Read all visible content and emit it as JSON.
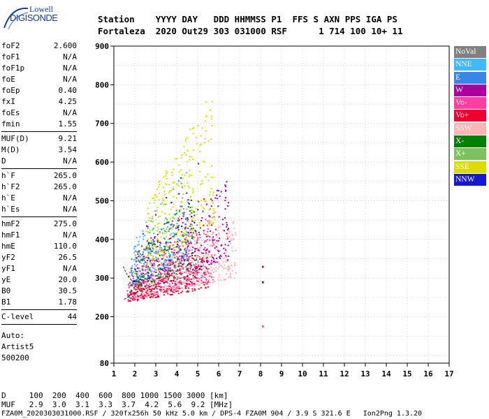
{
  "logo": {
    "line1": "Lowell",
    "line2": "DIGISONDE"
  },
  "header": {
    "line1": "Station    YYYY DAY   DDD HHMMSS P1  FFS S AXN PPS IGA PS",
    "line2": "Fortaleza  2020 Out29 303 031000 RSF      1 714 100 10+ 11"
  },
  "params": [
    [
      {
        "k": "foF2",
        "v": "2.600"
      },
      {
        "k": "foF1",
        "v": "N/A"
      },
      {
        "k": "foF1p",
        "v": "N/A"
      },
      {
        "k": "foE",
        "v": "N/A"
      },
      {
        "k": "foEp",
        "v": "0.40"
      },
      {
        "k": "fxI",
        "v": "4.25"
      },
      {
        "k": "foEs",
        "v": "N/A"
      },
      {
        "k": "fmin",
        "v": "1.55"
      }
    ],
    [
      {
        "k": "MUF(D)",
        "v": "9.21"
      },
      {
        "k": "M(D)",
        "v": "3.54"
      },
      {
        "k": "D",
        "v": "N/A"
      }
    ],
    [
      {
        "k": "h`F",
        "v": "265.0"
      },
      {
        "k": "h`F2",
        "v": "265.0"
      },
      {
        "k": "h`E",
        "v": "N/A"
      },
      {
        "k": "h`Es",
        "v": "N/A"
      }
    ],
    [
      {
        "k": "hmF2",
        "v": "275.0"
      },
      {
        "k": "hmF1",
        "v": "N/A"
      },
      {
        "k": "hmE",
        "v": "110.0"
      },
      {
        "k": "yF2",
        "v": "26.5"
      },
      {
        "k": "yF1",
        "v": "N/A"
      },
      {
        "k": "yE",
        "v": "20.0"
      },
      {
        "k": "B0",
        "v": "30.5"
      },
      {
        "k": "B1",
        "v": "1.78"
      }
    ],
    [
      {
        "k": "C-level",
        "v": "44"
      }
    ]
  ],
  "auto": {
    "line1": "Auto:",
    "line2": "Artist5",
    "line3": "500200"
  },
  "legend": [
    {
      "label": "NoVal",
      "color": "#808080"
    },
    {
      "label": "NNE",
      "color": "#3fb8ff"
    },
    {
      "label": "E",
      "color": "#3a86e8"
    },
    {
      "label": "W",
      "color": "#a8009c"
    },
    {
      "label": "Vo-",
      "color": "#ff3fa0"
    },
    {
      "label": "Vo+",
      "color": "#f00030"
    },
    {
      "label": "SSW",
      "color": "#ffb4b4"
    },
    {
      "label": "X-",
      "color": "#008000"
    },
    {
      "label": "X+",
      "color": "#80c060"
    },
    {
      "label": "SSE",
      "color": "#dcdc00"
    },
    {
      "label": "NNW",
      "color": "#1818d0"
    }
  ],
  "chart_data": {
    "type": "scatter",
    "xlim": [
      1,
      17
    ],
    "ylim": [
      80,
      900
    ],
    "x_ticks": [
      1,
      2,
      3,
      4,
      5,
      6,
      7,
      8,
      9,
      10,
      11,
      12,
      13,
      14,
      15,
      16,
      17
    ],
    "y_ticks": [
      80,
      200,
      300,
      400,
      500,
      600,
      700,
      800,
      900
    ],
    "grid": true,
    "clusters": [
      {
        "name": "Vo-",
        "x_range": [
          1.6,
          5.8
        ],
        "y_range": [
          240,
          470
        ],
        "n": 420,
        "color": "#ff3fa0"
      },
      {
        "name": "SSW",
        "x_range": [
          2.0,
          6.8
        ],
        "y_range": [
          250,
          460
        ],
        "n": 380,
        "color": "#ffb4b4"
      },
      {
        "name": "Vo+",
        "x_range": [
          1.7,
          5.5
        ],
        "y_range": [
          240,
          380
        ],
        "n": 260,
        "color": "#f00030"
      },
      {
        "name": "W",
        "x_range": [
          2.0,
          6.5
        ],
        "y_range": [
          280,
          560
        ],
        "n": 260,
        "color": "#a8009c"
      },
      {
        "name": "SSE",
        "x_range": [
          2.5,
          5.8
        ],
        "y_range": [
          330,
          800
        ],
        "n": 300,
        "color": "#dcdc00"
      },
      {
        "name": "X-",
        "x_range": [
          1.8,
          4.8
        ],
        "y_range": [
          270,
          520
        ],
        "n": 110,
        "color": "#008000"
      },
      {
        "name": "X+",
        "x_range": [
          1.8,
          5.0
        ],
        "y_range": [
          270,
          500
        ],
        "n": 90,
        "color": "#80c060"
      },
      {
        "name": "NNE",
        "x_range": [
          1.8,
          4.5
        ],
        "y_range": [
          280,
          600
        ],
        "n": 120,
        "color": "#3fb8ff"
      },
      {
        "name": "E",
        "x_range": [
          1.8,
          4.5
        ],
        "y_range": [
          280,
          520
        ],
        "n": 90,
        "color": "#3a86e8"
      },
      {
        "name": "NNW",
        "x_range": [
          1.9,
          5.0
        ],
        "y_range": [
          280,
          620
        ],
        "n": 60,
        "color": "#1818d0"
      }
    ],
    "isolated_points": [
      {
        "x": 8.1,
        "y": 330,
        "color": "#a8009c"
      },
      {
        "x": 8.1,
        "y": 290,
        "color": "#1818d0"
      },
      {
        "x": 8.1,
        "y": 176,
        "color": "#ff3fa0"
      }
    ],
    "trace": [
      {
        "x": 1.5,
        "y": 245
      },
      {
        "x": 2.0,
        "y": 262
      },
      {
        "x": 2.5,
        "y": 272
      },
      {
        "x": 3.0,
        "y": 283
      },
      {
        "x": 3.5,
        "y": 290
      },
      {
        "x": 4.0,
        "y": 297
      },
      {
        "x": 4.5,
        "y": 305
      },
      {
        "x": 5.0,
        "y": 320
      },
      {
        "x": 5.3,
        "y": 335
      }
    ]
  },
  "footer": {
    "line1": "D     100  200  400  600  800 1000 1500 3000 [km]",
    "line2": "MUF   2.9  3.0  3.1  3.3  3.7  4.2  5.6  9.2 [MHz]",
    "line3": "FZA0M_2020303031000.RSF / 320fx256h 50 kHz 5.0 km / DPS-4 FZA0M 904 / 3.9 S 321.6 E   Ion2Png 1.3.20"
  }
}
